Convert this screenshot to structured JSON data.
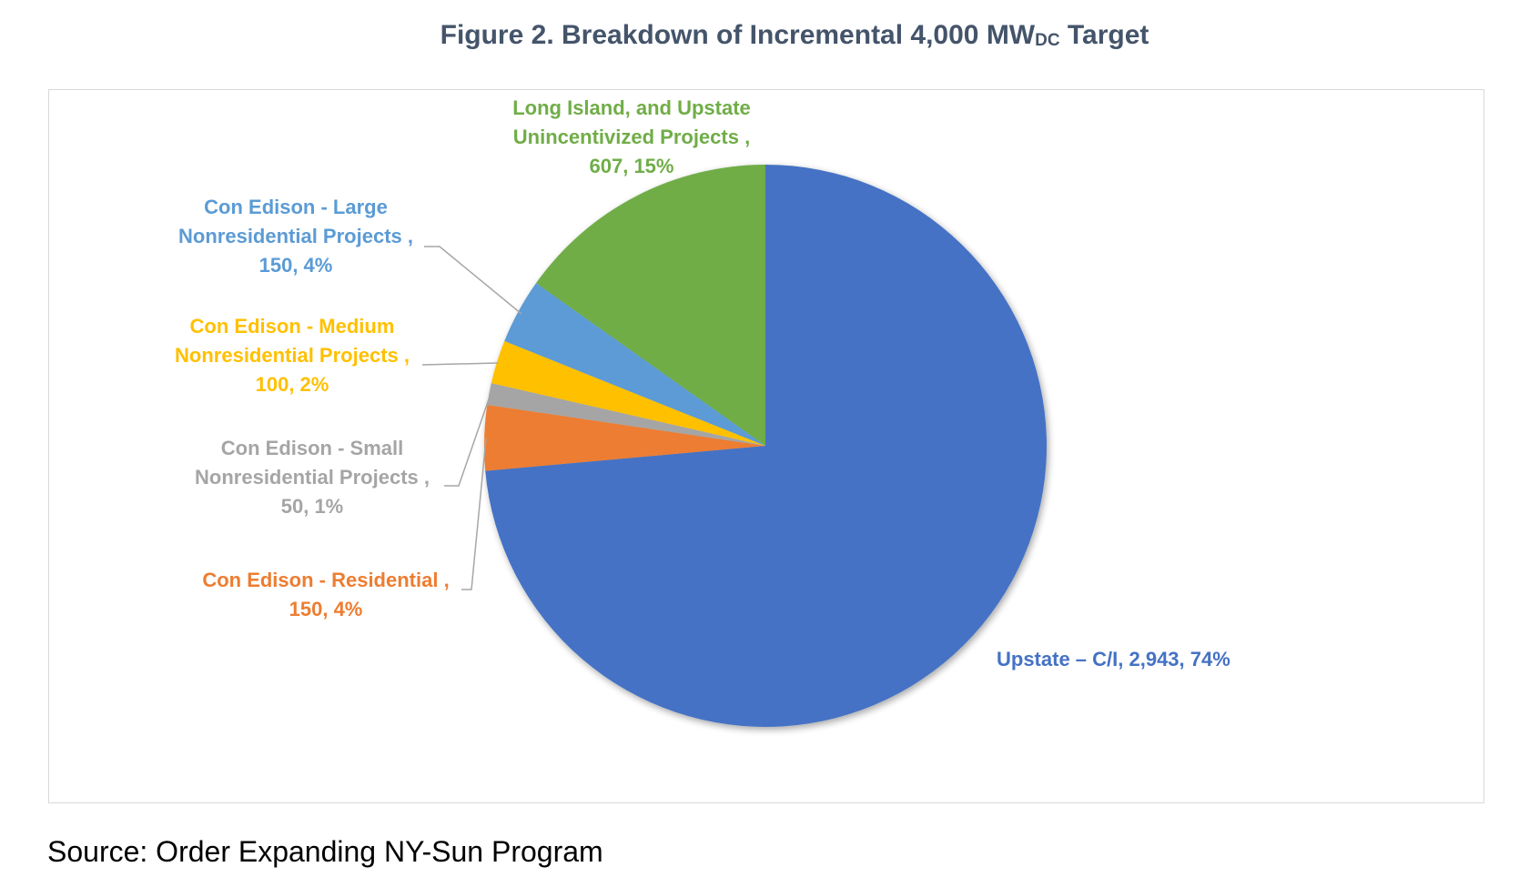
{
  "chart_data": {
    "type": "pie",
    "title": "Figure 2. Breakdown of Incremental 4,000 MW",
    "title_subscript": "DC",
    "title_suffix": " Target",
    "slices": [
      {
        "label": "Upstate – C/I",
        "value": 2943,
        "percent": "74%",
        "color": "#4472C4",
        "data_label": [
          "Upstate – C/I, 2,943, 74%"
        ]
      },
      {
        "label": "Con Edison - Residential",
        "value": 150,
        "percent": "4%",
        "color": "#ED7D31",
        "data_label": [
          "Con Edison - Residential ,",
          "150, 4%"
        ]
      },
      {
        "label": "Con Edison - Small Nonresidential Projects",
        "value": 50,
        "percent": "1%",
        "color": "#A5A5A5",
        "data_label": [
          "Con Edison - Small",
          "Nonresidential Projects ,",
          "50, 1%"
        ]
      },
      {
        "label": "Con Edison - Medium Nonresidential Projects",
        "value": 100,
        "percent": "2%",
        "color": "#FFC000",
        "data_label": [
          "Con Edison  - Medium",
          "Nonresidential Projects ,",
          "100, 2%"
        ]
      },
      {
        "label": "Con Edison - Large Nonresidential Projects",
        "value": 150,
        "percent": "4%",
        "color": "#5B9BD5",
        "data_label": [
          "Con Edison  - Large",
          "Nonresidential Projects ,",
          "150, 4%"
        ]
      },
      {
        "label": "Long Island, and Upstate Unincentivized Projects",
        "value": 607,
        "percent": "15%",
        "color": "#70AD47",
        "data_label": [
          "Long Island, and Upstate",
          "Unincentivized Projects ,",
          "607, 15%"
        ]
      }
    ],
    "legend": "none",
    "start_angle": "12 o'clock, clockwise"
  },
  "source": "Source: Order Expanding NY-Sun Program"
}
